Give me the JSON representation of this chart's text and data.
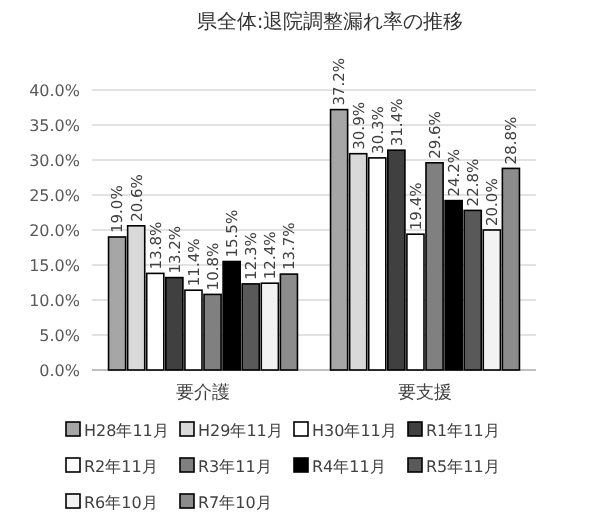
{
  "chart_data": {
    "type": "bar",
    "title": "県全体:退院調整漏れ率の推移",
    "categories": [
      "要介護",
      "要支援"
    ],
    "series": [
      {
        "name": "H28年11月",
        "color": "#a6a6a6",
        "values": [
          19.0,
          37.2
        ],
        "value_labels": [
          "19.0%",
          "37.2%"
        ]
      },
      {
        "name": "H29年11月",
        "color": "#d9d9d9",
        "values": [
          20.6,
          30.9
        ],
        "value_labels": [
          "20.6%",
          "30.9%"
        ]
      },
      {
        "name": "H30年11月",
        "color": "#ffffff",
        "values": [
          13.8,
          30.3
        ],
        "value_labels": [
          "13.8%",
          "30.3%"
        ]
      },
      {
        "name": "R1年11月",
        "color": "#404040",
        "values": [
          13.2,
          31.4
        ],
        "value_labels": [
          "13.2%",
          "31.4%"
        ]
      },
      {
        "name": "R2年11月",
        "color": "#ffffff",
        "values": [
          11.4,
          19.4
        ],
        "value_labels": [
          "11.4%",
          "19.4%"
        ]
      },
      {
        "name": "R3年11月",
        "color": "#808080",
        "values": [
          10.8,
          29.6
        ],
        "value_labels": [
          "10.8%",
          "29.6%"
        ]
      },
      {
        "name": "R4年11月",
        "color": "#000000",
        "values": [
          15.5,
          24.2
        ],
        "value_labels": [
          "15.5%",
          "24.2%"
        ]
      },
      {
        "name": "R5年11月",
        "color": "#595959",
        "values": [
          12.3,
          22.8
        ],
        "value_labels": [
          "12.3%",
          "22.8%"
        ]
      },
      {
        "name": "R6年10月",
        "color": "#f2f2f2",
        "values": [
          12.4,
          20.0
        ],
        "value_labels": [
          "12.4%",
          "20.0%"
        ]
      },
      {
        "name": "R7年10月",
        "color": "#8c8c8c",
        "values": [
          13.7,
          28.8
        ],
        "value_labels": [
          "13.7%",
          "28.8%"
        ]
      }
    ],
    "ylim": [
      0,
      40
    ],
    "yticks": [
      {
        "value": 0,
        "label": "0.0%"
      },
      {
        "value": 5,
        "label": "5.0%"
      },
      {
        "value": 10,
        "label": "10.0%"
      },
      {
        "value": 15,
        "label": "15.0%"
      },
      {
        "value": 20,
        "label": "20.0%"
      },
      {
        "value": 25,
        "label": "25.0%"
      },
      {
        "value": 30,
        "label": "30.0%"
      },
      {
        "value": 35,
        "label": "35.0%"
      },
      {
        "value": 40,
        "label": "40.0%"
      }
    ],
    "grid": "y",
    "legend": "bottom"
  }
}
